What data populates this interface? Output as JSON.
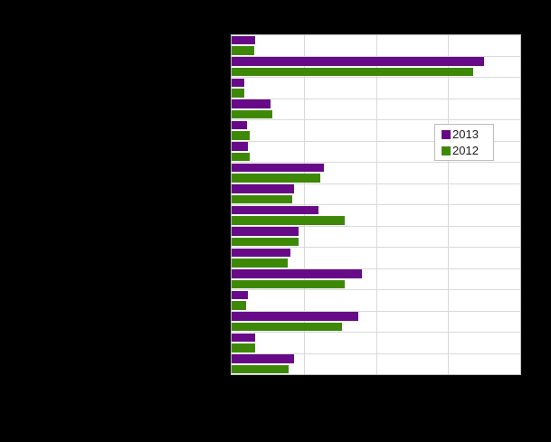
{
  "colors": {
    "background": "#000000",
    "plot_background": "#ffffff",
    "plot_border": "#bdbdbd",
    "gridline": "#d9d9d9",
    "series_2013": "#670a87",
    "series_2012": "#3e8808",
    "legend_text": "#1a1a1a"
  },
  "legend": {
    "items": [
      {
        "label": "2013",
        "color": "#670a87"
      },
      {
        "label": "2012",
        "color": "#3e8808"
      }
    ]
  },
  "chart_data": {
    "type": "bar",
    "orientation": "horizontal",
    "title": "",
    "xlabel": "",
    "ylabel": "",
    "xlim": [
      0,
      40
    ],
    "gridline_interval": 10,
    "grid": true,
    "legend_position": "middle-right",
    "categories": [
      "",
      "",
      "",
      "",
      "",
      "",
      "",
      "",
      "",
      "",
      "",
      "",
      "",
      "",
      "",
      ""
    ],
    "series": [
      {
        "name": "2013",
        "color": "#670a87",
        "values": [
          3.2,
          35.0,
          1.8,
          5.4,
          2.1,
          2.3,
          12.8,
          8.7,
          12.0,
          9.3,
          8.2,
          18.1,
          2.2,
          17.5,
          3.2,
          8.6
        ]
      },
      {
        "name": "2012",
        "color": "#3e8808",
        "values": [
          3.1,
          33.5,
          1.8,
          5.6,
          2.5,
          2.5,
          12.3,
          8.4,
          15.7,
          9.3,
          7.8,
          15.7,
          2.0,
          15.3,
          3.2,
          7.9
        ]
      }
    ]
  }
}
